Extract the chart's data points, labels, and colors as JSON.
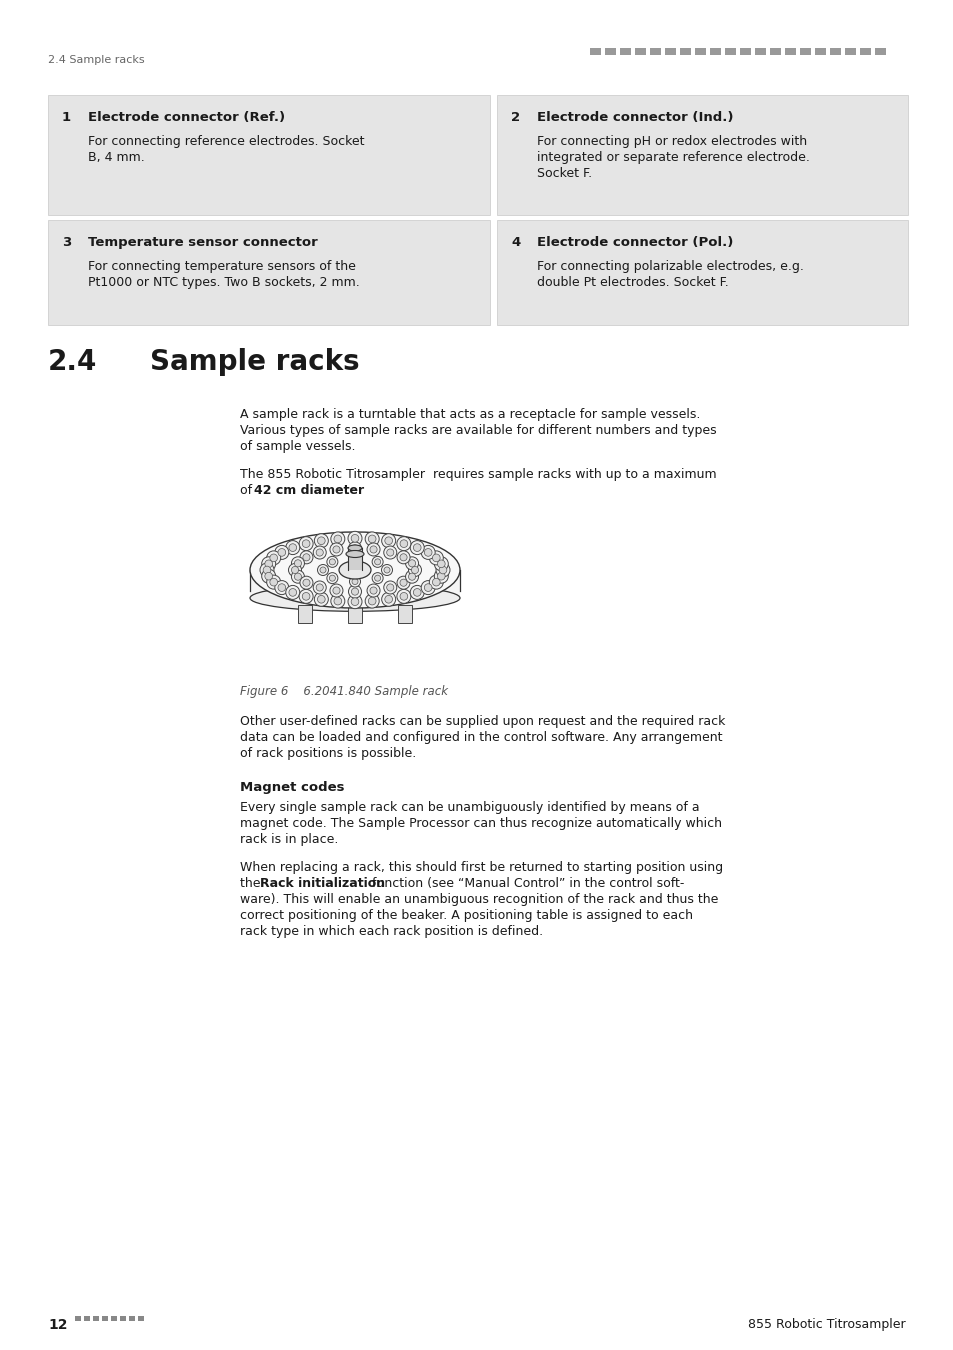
{
  "page_bg": "#ffffff",
  "header_text_left": "2.4 Sample racks",
  "boxes": [
    {
      "number": "1",
      "title": "Electrode connector (Ref.)",
      "body_lines": [
        "For connecting reference electrodes. Socket",
        "B, 4 mm."
      ]
    },
    {
      "number": "2",
      "title": "Electrode connector (Ind.)",
      "body_lines": [
        "For connecting pH or redox electrodes with",
        "integrated or separate reference electrode.",
        "Socket F."
      ]
    },
    {
      "number": "3",
      "title": "Temperature sensor connector",
      "body_lines": [
        "For connecting temperature sensors of the",
        "Pt1000 or NTC types. Two B sockets, 2 mm."
      ]
    },
    {
      "number": "4",
      "title": "Electrode connector (Pol.)",
      "body_lines": [
        "For connecting polarizable electrodes, e.g.",
        "double Pt electrodes. Socket F."
      ]
    }
  ],
  "section_number": "2.4",
  "section_name": "Sample racks",
  "para1_lines": [
    "A sample rack is a turntable that acts as a receptacle for sample vessels.",
    "Various types of sample racks are available for different numbers and types",
    "of sample vessels."
  ],
  "para2_line1": "The 855 Robotic Titrosampler  requires sample racks with up to a maximum",
  "para2_line2_pre": "of ",
  "para2_line2_bold": "42 cm diameter",
  "para2_line2_post": ".",
  "figure_caption": "Figure 6    6.2041.840 Sample rack",
  "para3_lines": [
    "Other user-defined racks can be supplied upon request and the required rack",
    "data can be loaded and configured in the control software. Any arrangement",
    "of rack positions is possible."
  ],
  "magnet_heading": "Magnet codes",
  "mag1_lines": [
    "Every single sample rack can be unambiguously identified by means of a",
    "magnet code. The Sample Processor can thus recognize automatically which",
    "rack is in place."
  ],
  "mag2_line1": "When replacing a rack, this should first be returned to starting position using",
  "mag2_line2_pre": "the ",
  "mag2_line2_bold": "Rack initialization",
  "mag2_line2_post": " function (see “Manual Control” in the control soft-",
  "mag2_lines_rest": [
    "ware). This will enable an unambiguous recognition of the rack and thus the",
    "correct positioning of the beaker. A positioning table is assigned to each",
    "rack type in which each rack position is defined."
  ],
  "footer_num": "12",
  "footer_right": "855 Robotic Titrosampler",
  "box_bg": "#e5e5e5",
  "text_dark": "#1a1a1a",
  "text_gray": "#555555",
  "header_color": "#888888",
  "dot_color": "#999999"
}
